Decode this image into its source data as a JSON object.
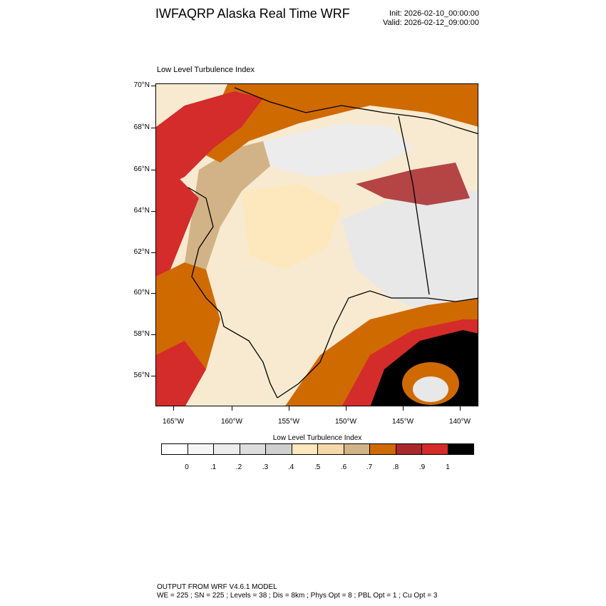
{
  "header": {
    "title": "IWFAQRP Alaska Real Time WRF",
    "init": "Init: 2026-02-10_00:00:00",
    "valid": "Valid: 2026-02-12_09:00:00"
  },
  "plot": {
    "title": "Low Level Turbulence Index",
    "lat_labels": [
      "70°N",
      "68°N",
      "66°N",
      "64°N",
      "62°N",
      "60°N",
      "58°N",
      "56°N"
    ],
    "lon_labels": [
      "165°W",
      "160°W",
      "155°W",
      "150°W",
      "145°W",
      "140°W"
    ]
  },
  "colorbar": {
    "title": "Low Level Turbulence Index",
    "labels": [
      "0",
      ".1",
      ".2",
      ".3",
      ".4",
      ".5",
      ".6",
      ".7",
      ".8",
      ".9",
      "1"
    ],
    "colors": [
      "#ffffff",
      "#f5f5f5",
      "#ececec",
      "#dddddd",
      "#cfcfcf",
      "#fde8bd",
      "#f5d8a8",
      "#d2b387",
      "#cf6a00",
      "#a8282c",
      "#d42b2b",
      "#000000"
    ]
  },
  "footer": {
    "line1": "OUTPUT FROM WRF V4.6.1 MODEL",
    "line2": "WE = 225 ; SN = 225 ; Levels = 38 ; Dis = 8km ; Phys Opt = 8 ; PBL Opt = 1 ; Cu Opt = 3"
  }
}
